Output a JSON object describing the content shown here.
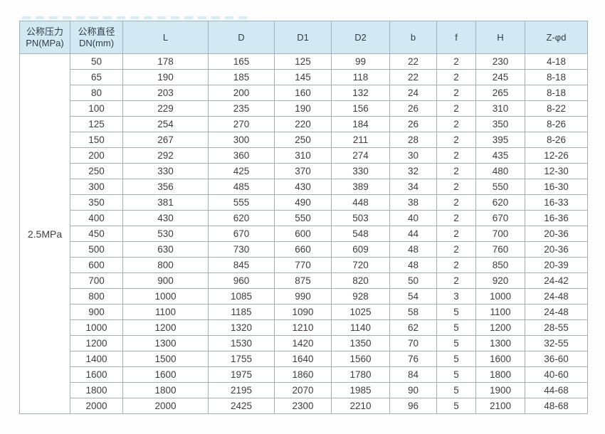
{
  "page": {
    "background": "#fdfdfd"
  },
  "colors": {
    "header_background": "#d2e9f4",
    "header_text": "#2d3e48",
    "body_text": "#3d3d3d",
    "cell_border": "#a6aeb2",
    "accent_dashed_strip": "#cfe8f3"
  },
  "table": {
    "pressure_label": "2.5MPa",
    "columns": [
      {
        "key": "pn",
        "lines": [
          "公称压力",
          "PN(MPa)"
        ]
      },
      {
        "key": "dn",
        "lines": [
          "公称直径",
          "DN(mm)"
        ]
      },
      {
        "key": "l",
        "lines": [
          "L"
        ]
      },
      {
        "key": "d",
        "lines": [
          "D"
        ]
      },
      {
        "key": "d1",
        "lines": [
          "D1"
        ]
      },
      {
        "key": "d2",
        "lines": [
          "D2"
        ]
      },
      {
        "key": "b",
        "lines": [
          "b"
        ]
      },
      {
        "key": "f",
        "lines": [
          "f"
        ]
      },
      {
        "key": "h",
        "lines": [
          "H"
        ]
      },
      {
        "key": "z",
        "lines": [
          "Z-φd"
        ]
      }
    ],
    "rows": [
      [
        "50",
        "178",
        "165",
        "125",
        "99",
        "22",
        "2",
        "230",
        "4-18"
      ],
      [
        "65",
        "190",
        "185",
        "145",
        "118",
        "22",
        "2",
        "245",
        "8-18"
      ],
      [
        "80",
        "203",
        "200",
        "160",
        "132",
        "24",
        "2",
        "265",
        "8-18"
      ],
      [
        "100",
        "229",
        "235",
        "190",
        "156",
        "26",
        "2",
        "310",
        "8-22"
      ],
      [
        "125",
        "254",
        "270",
        "220",
        "184",
        "26",
        "2",
        "350",
        "8-26"
      ],
      [
        "150",
        "267",
        "300",
        "250",
        "211",
        "28",
        "2",
        "395",
        "8-26"
      ],
      [
        "200",
        "292",
        "360",
        "310",
        "274",
        "30",
        "2",
        "435",
        "12-26"
      ],
      [
        "250",
        "330",
        "425",
        "370",
        "330",
        "32",
        "2",
        "480",
        "12-30"
      ],
      [
        "300",
        "356",
        "485",
        "430",
        "389",
        "34",
        "2",
        "550",
        "16-30"
      ],
      [
        "350",
        "381",
        "555",
        "490",
        "448",
        "38",
        "2",
        "620",
        "16-33"
      ],
      [
        "400",
        "430",
        "620",
        "550",
        "503",
        "40",
        "2",
        "670",
        "16-36"
      ],
      [
        "450",
        "530",
        "670",
        "600",
        "548",
        "44",
        "2",
        "700",
        "20-36"
      ],
      [
        "500",
        "630",
        "730",
        "660",
        "609",
        "48",
        "2",
        "760",
        "20-36"
      ],
      [
        "600",
        "800",
        "845",
        "770",
        "720",
        "48",
        "2",
        "850",
        "20-39"
      ],
      [
        "700",
        "900",
        "960",
        "875",
        "820",
        "50",
        "2",
        "920",
        "24-42"
      ],
      [
        "800",
        "1000",
        "1085",
        "990",
        "928",
        "54",
        "3",
        "1000",
        "24-48"
      ],
      [
        "900",
        "1100",
        "1185",
        "1090",
        "1025",
        "58",
        "5",
        "1100",
        "24-48"
      ],
      [
        "1000",
        "1200",
        "1320",
        "1210",
        "1140",
        "62",
        "5",
        "1200",
        "28-55"
      ],
      [
        "1200",
        "1300",
        "1530",
        "1420",
        "1350",
        "70",
        "5",
        "1300",
        "32-55"
      ],
      [
        "1400",
        "1500",
        "1755",
        "1640",
        "1560",
        "76",
        "5",
        "1600",
        "36-60"
      ],
      [
        "1600",
        "1600",
        "1975",
        "1860",
        "1780",
        "84",
        "5",
        "1800",
        "40-60"
      ],
      [
        "1800",
        "1800",
        "2195",
        "2070",
        "1985",
        "90",
        "5",
        "1900",
        "44-68"
      ],
      [
        "2000",
        "2000",
        "2425",
        "2300",
        "2210",
        "96",
        "5",
        "2100",
        "48-68"
      ]
    ]
  }
}
